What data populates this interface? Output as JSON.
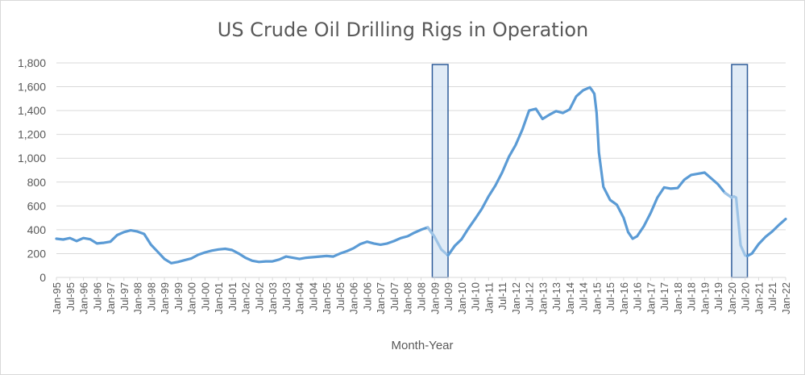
{
  "chart_data": {
    "type": "line",
    "title": "US Crude Oil Drilling Rigs in Operation",
    "xlabel": "Month-Year",
    "ylabel": "",
    "ylim": [
      0,
      1800
    ],
    "yticks": [
      "0",
      "200",
      "400",
      "600",
      "800",
      "1,000",
      "1,200",
      "1,400",
      "1,600",
      "1,800"
    ],
    "xticks": [
      "Jan-95",
      "Jul-95",
      "Jan-96",
      "Jul-96",
      "Jan-97",
      "Jul-97",
      "Jan-98",
      "Jul-98",
      "Jan-99",
      "Jul-99",
      "Jan-00",
      "Jul-00",
      "Jan-01",
      "Jul-01",
      "Jan-02",
      "Jul-02",
      "Jan-03",
      "Jul-03",
      "Jan-04",
      "Jul-04",
      "Jan-05",
      "Jul-05",
      "Jan-06",
      "Jul-06",
      "Jan-07",
      "Jul-07",
      "Jan-08",
      "Jul-08",
      "Jan-09",
      "Jul-09",
      "Jan-10",
      "Jul-10",
      "Jan-11",
      "Jul-11",
      "Jan-12",
      "Jul-12",
      "Jan-13",
      "Jul-13",
      "Jan-14",
      "Jul-14",
      "Jan-15",
      "Jul-15",
      "Jan-16",
      "Jul-16",
      "Jan-17",
      "Jul-17",
      "Jan-18",
      "Jul-18",
      "Jan-19",
      "Jul-19",
      "Jan-20",
      "Jul-20",
      "Jan-21",
      "Jul-21",
      "Jan-22"
    ],
    "x_start": "Jan-95",
    "x_end": "Jan-22",
    "gridlines": true,
    "legend": "none",
    "line_color": "#5b9bd5",
    "recession_line_color": "#9dc3e6",
    "shade_fill": "#dae7f5",
    "shade_stroke": "#2e5c99",
    "shaded_periods": [
      {
        "start": "Dec-08",
        "end": "Jul-09"
      },
      {
        "start": "Jan-20",
        "end": "Aug-20"
      }
    ],
    "series": [
      {
        "points": [
          [
            "Jan-95",
            325
          ],
          [
            "Apr-95",
            318
          ],
          [
            "Jul-95",
            330
          ],
          [
            "Oct-95",
            305
          ],
          [
            "Jan-96",
            330
          ],
          [
            "Apr-96",
            320
          ],
          [
            "Jul-96",
            285
          ],
          [
            "Oct-96",
            290
          ],
          [
            "Jan-97",
            300
          ],
          [
            "Apr-97",
            355
          ],
          [
            "Jul-97",
            380
          ],
          [
            "Oct-97",
            395
          ],
          [
            "Jan-98",
            385
          ],
          [
            "Apr-98",
            365
          ],
          [
            "Jul-98",
            275
          ],
          [
            "Oct-98",
            215
          ],
          [
            "Jan-99",
            155
          ],
          [
            "Apr-99",
            120
          ],
          [
            "Jul-99",
            130
          ],
          [
            "Oct-99",
            145
          ],
          [
            "Jan-00",
            160
          ],
          [
            "Apr-00",
            190
          ],
          [
            "Jul-00",
            210
          ],
          [
            "Oct-00",
            225
          ],
          [
            "Jan-01",
            235
          ],
          [
            "Apr-01",
            240
          ],
          [
            "Jul-01",
            230
          ],
          [
            "Oct-01",
            200
          ],
          [
            "Jan-02",
            165
          ],
          [
            "Apr-02",
            140
          ],
          [
            "Jul-02",
            130
          ],
          [
            "Oct-02",
            135
          ],
          [
            "Jan-03",
            135
          ],
          [
            "Apr-03",
            150
          ],
          [
            "Jul-03",
            175
          ],
          [
            "Oct-03",
            165
          ],
          [
            "Jan-04",
            155
          ],
          [
            "Apr-04",
            165
          ],
          [
            "Jul-04",
            170
          ],
          [
            "Oct-04",
            175
          ],
          [
            "Jan-05",
            180
          ],
          [
            "Apr-05",
            175
          ],
          [
            "Jul-05",
            200
          ],
          [
            "Oct-05",
            220
          ],
          [
            "Jan-06",
            245
          ],
          [
            "Apr-06",
            280
          ],
          [
            "Jul-06",
            300
          ],
          [
            "Oct-06",
            285
          ],
          [
            "Jan-07",
            275
          ],
          [
            "Apr-07",
            285
          ],
          [
            "Jul-07",
            305
          ],
          [
            "Oct-07",
            330
          ],
          [
            "Jan-08",
            345
          ],
          [
            "Apr-08",
            375
          ],
          [
            "Jul-08",
            400
          ],
          [
            "Oct-08",
            420
          ],
          [
            "Jan-09",
            340
          ],
          [
            "Apr-09",
            235
          ],
          [
            "Jul-09",
            185
          ],
          [
            "Oct-09",
            265
          ],
          [
            "Jan-10",
            320
          ],
          [
            "Apr-10",
            410
          ],
          [
            "Jul-10",
            490
          ],
          [
            "Oct-10",
            575
          ],
          [
            "Jan-11",
            680
          ],
          [
            "Apr-11",
            770
          ],
          [
            "Jul-11",
            880
          ],
          [
            "Oct-11",
            1010
          ],
          [
            "Jan-12",
            1110
          ],
          [
            "Apr-12",
            1240
          ],
          [
            "Jul-12",
            1400
          ],
          [
            "Oct-12",
            1415
          ],
          [
            "Jan-13",
            1330
          ],
          [
            "Apr-13",
            1365
          ],
          [
            "Jul-13",
            1395
          ],
          [
            "Oct-13",
            1380
          ],
          [
            "Jan-14",
            1410
          ],
          [
            "Apr-14",
            1520
          ],
          [
            "Jul-14",
            1570
          ],
          [
            "Oct-14",
            1595
          ],
          [
            "Nov-14",
            1570
          ],
          [
            "Dec-14",
            1540
          ],
          [
            "Jan-15",
            1380
          ],
          [
            "Feb-15",
            1050
          ],
          [
            "Apr-15",
            760
          ],
          [
            "Jul-15",
            650
          ],
          [
            "Oct-15",
            610
          ],
          [
            "Jan-16",
            500
          ],
          [
            "Mar-16",
            380
          ],
          [
            "May-16",
            325
          ],
          [
            "Jul-16",
            345
          ],
          [
            "Oct-16",
            430
          ],
          [
            "Jan-17",
            540
          ],
          [
            "Apr-17",
            670
          ],
          [
            "Jul-17",
            755
          ],
          [
            "Oct-17",
            745
          ],
          [
            "Jan-18",
            750
          ],
          [
            "Apr-18",
            820
          ],
          [
            "Jul-18",
            860
          ],
          [
            "Oct-18",
            870
          ],
          [
            "Jan-19",
            880
          ],
          [
            "Apr-19",
            830
          ],
          [
            "Jul-19",
            780
          ],
          [
            "Oct-19",
            710
          ],
          [
            "Jan-20",
            670
          ],
          [
            "Feb-20",
            680
          ],
          [
            "Mar-20",
            670
          ],
          [
            "Apr-20",
            470
          ],
          [
            "May-20",
            270
          ],
          [
            "Jul-20",
            185
          ],
          [
            "Aug-20",
            180
          ],
          [
            "Oct-20",
            200
          ],
          [
            "Jan-21",
            280
          ],
          [
            "Apr-21",
            340
          ],
          [
            "Jul-21",
            385
          ],
          [
            "Oct-21",
            440
          ],
          [
            "Jan-22",
            490
          ]
        ]
      }
    ]
  }
}
